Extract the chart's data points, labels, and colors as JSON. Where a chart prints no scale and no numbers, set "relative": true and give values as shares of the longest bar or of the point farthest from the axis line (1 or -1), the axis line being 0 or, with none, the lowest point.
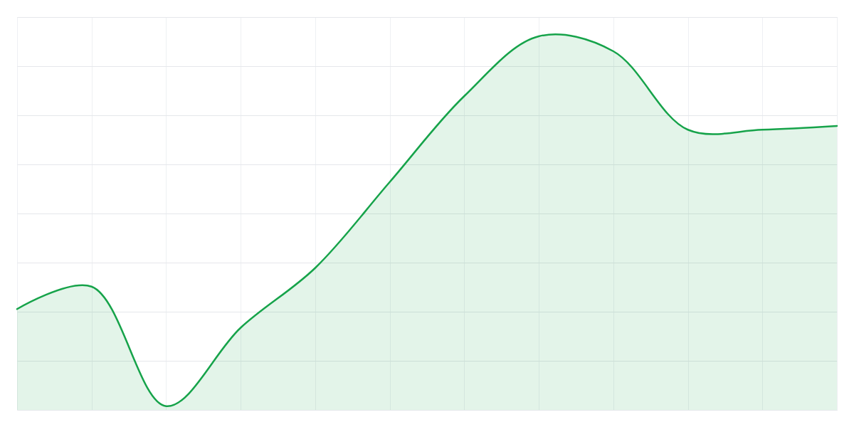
{
  "chart_data": {
    "type": "area",
    "categories": [
      null,
      null,
      null,
      null,
      null,
      null,
      null,
      null,
      null,
      null,
      null,
      null
    ],
    "values": [
      0.27,
      0.33,
      0.01,
      0.22,
      0.38,
      0.61,
      0.84,
      1,
      0.96,
      0.75,
      0.75,
      0.76
    ],
    "color": "#16a34a",
    "relative": true,
    "grid": true
  }
}
